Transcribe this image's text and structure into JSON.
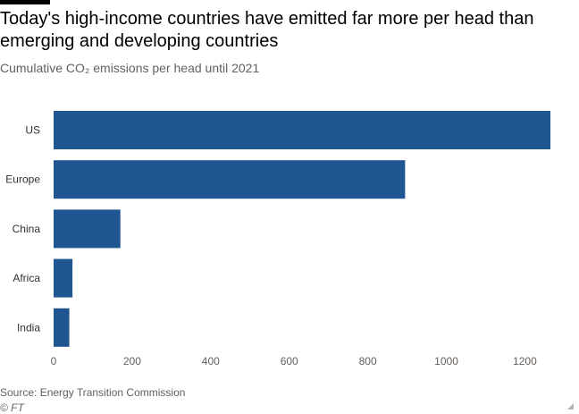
{
  "header": {
    "title": "Today's high-income countries have emitted far more per head than emerging and developing countries",
    "subtitle": "Cumulative CO₂ emissions per head until 2021"
  },
  "footer": {
    "source": "Source: Energy Transition Commission",
    "credit": "© FT"
  },
  "chart_data": {
    "type": "bar",
    "orientation": "horizontal",
    "title": "Today's high-income countries have emitted far more per head than emerging and developing countries",
    "subtitle": "Cumulative CO₂ emissions per head until 2021",
    "categories": [
      "US",
      "Europe",
      "China",
      "Africa",
      "India"
    ],
    "values": [
      1265,
      895,
      170,
      48,
      40
    ],
    "xlabel": "",
    "ylabel": "",
    "xlim": [
      0,
      1265
    ],
    "xticks": [
      0,
      200,
      400,
      600,
      800,
      1000,
      1200
    ],
    "grid": false,
    "legend": "none",
    "bar_color": "#1f5591"
  }
}
